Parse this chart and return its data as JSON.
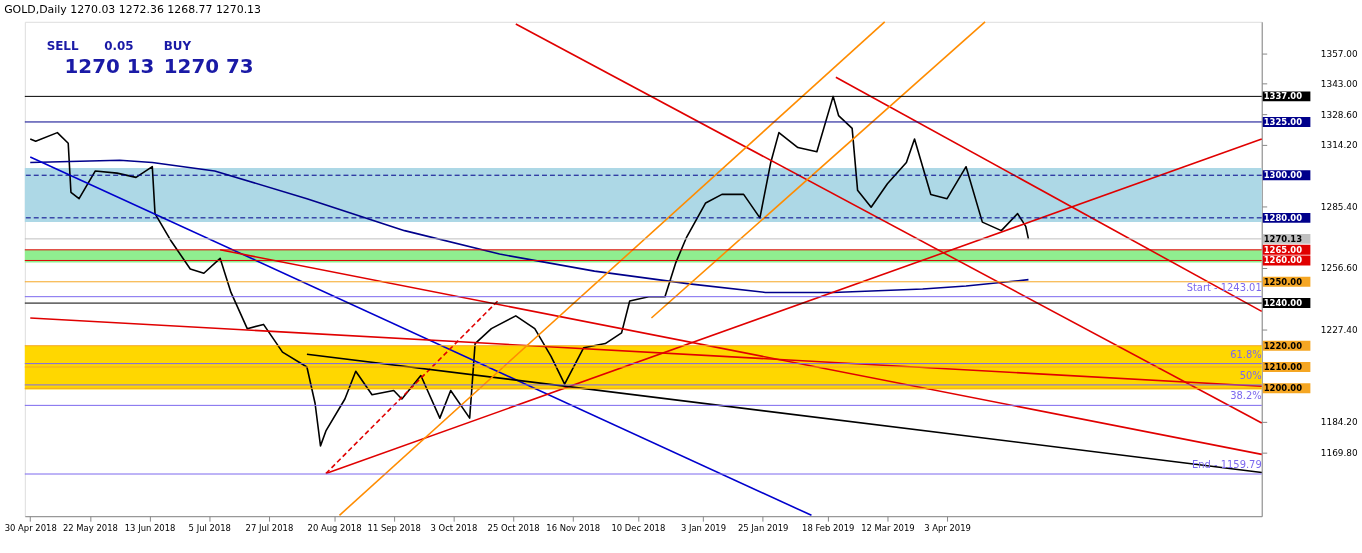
{
  "chart_data": {
    "type": "line",
    "title": "GOLD,Daily  1270.03 1272.36 1268.77 1270.13",
    "annotations": [
      "SELL",
      "0.05",
      "BUY",
      "1270 13",
      "1270 73",
      {
        "text": "Start - 1243.01",
        "x": "2019-07-28",
        "y": 1243.01
      },
      {
        "text": "61.8%",
        "x": "2019-07-28",
        "y": 1211.6
      },
      {
        "text": "50%",
        "x": "2019-07-28",
        "y": 1201.6
      },
      {
        "text": "38.2%",
        "x": "2019-07-28",
        "y": 1192
      },
      {
        "text": "End - 1159.79",
        "x": "2019-07-28",
        "y": 1159.79
      }
    ],
    "series": [
      {
        "color": "#000000",
        "x": [
          "2018-04-30",
          "2018-05-02",
          "2018-05-10",
          "2018-05-14",
          "2018-05-15",
          "2018-05-18",
          "2018-05-24",
          "2018-06-01",
          "2018-06-08",
          "2018-06-14",
          "2018-06-15",
          "2018-06-21",
          "2018-06-28",
          "2018-07-03",
          "2018-07-09",
          "2018-07-13",
          "2018-07-19",
          "2018-07-25",
          "2018-08-01",
          "2018-08-10",
          "2018-08-13",
          "2018-08-15",
          "2018-08-17",
          "2018-08-24",
          "2018-08-28",
          "2018-09-03",
          "2018-09-11",
          "2018-09-14",
          "2018-09-21",
          "2018-09-28",
          "2018-10-02",
          "2018-10-09",
          "2018-10-11",
          "2018-10-17",
          "2018-10-26",
          "2018-11-02",
          "2018-11-08",
          "2018-11-13",
          "2018-11-20",
          "2018-11-28",
          "2018-12-04",
          "2018-12-07",
          "2018-12-14",
          "2018-12-20",
          "2018-12-24",
          "2018-12-28",
          "2019-01-04",
          "2019-01-10",
          "2019-01-18",
          "2019-01-24",
          "2019-01-28",
          "2019-01-31",
          "2019-02-07",
          "2019-02-14",
          "2019-02-20",
          "2019-02-22",
          "2019-02-27",
          "2019-03-01",
          "2019-03-06",
          "2019-03-12",
          "2019-03-19",
          "2019-03-22",
          "2019-03-28",
          "2019-04-03",
          "2019-04-10",
          "2019-04-16",
          "2019-04-23",
          "2019-04-29",
          "2019-05-02",
          "2019-05-03"
        ],
        "values": [
          1317,
          1316,
          1320,
          1315,
          1292,
          1289,
          1302,
          1301,
          1299,
          1304,
          1282,
          1269,
          1256,
          1254,
          1261,
          1245,
          1228,
          1230,
          1217,
          1210,
          1193,
          1173,
          1180,
          1195,
          1208,
          1197,
          1199,
          1195,
          1206,
          1186,
          1199,
          1186,
          1221,
          1228,
          1234,
          1228,
          1215,
          1202,
          1219,
          1221,
          1226,
          1241,
          1243,
          1243,
          1259,
          1271,
          1287,
          1291,
          1291,
          1280,
          1306,
          1320,
          1313,
          1311,
          1337,
          1328,
          1322,
          1293,
          1285,
          1296,
          1306,
          1317,
          1291,
          1289,
          1304,
          1278,
          1274,
          1282,
          1276,
          1270
        ]
      },
      {
        "color": "#00008b",
        "x": [
          "2018-04-30",
          "2018-06-02",
          "2018-06-14",
          "2018-07-07",
          "2018-08-10",
          "2018-09-15",
          "2018-10-20",
          "2018-11-24",
          "2018-12-29",
          "2019-01-26",
          "2019-02-20",
          "2019-03-25",
          "2019-04-10",
          "2019-05-03"
        ],
        "values": [
          1306,
          1307,
          1306,
          1302,
          1289,
          1274,
          1263,
          1255,
          1249,
          1245,
          1245,
          1246.6,
          1248,
          1251
        ]
      },
      {
        "color": "#0000cd",
        "x": [
          "2018-04-30",
          "2019-02-12"
        ],
        "values": [
          1308.6,
          1140.4
        ]
      },
      {
        "color": "#e00000",
        "x": [
          "2018-10-26",
          "2019-07-28"
        ],
        "values": [
          1371,
          1183.7
        ]
      },
      {
        "color": "#e00000",
        "x": [
          "2019-02-21",
          "2019-07-28"
        ],
        "values": [
          1346,
          1236.1
        ]
      },
      {
        "color": "#e00000",
        "x": [
          "2018-08-17",
          "2019-07-28"
        ],
        "values": [
          1160,
          1317
        ]
      },
      {
        "color": "#e00000",
        "x": [
          "2018-07-09",
          "2019-07-28"
        ],
        "values": [
          1265,
          1169
        ]
      },
      {
        "color": "#e00000",
        "x": [
          "2018-04-30",
          "2019-07-28"
        ],
        "values": [
          1233,
          1201
        ]
      },
      {
        "color": "#e00000",
        "line_style": "dashed",
        "x": [
          "2018-08-17",
          "2018-10-20"
        ],
        "values": [
          1160,
          1241.8
        ]
      },
      {
        "color": "#000000",
        "x": [
          "2018-08-10",
          "2019-07-28"
        ],
        "values": [
          1216,
          1160.5
        ]
      },
      {
        "color": "#ff8c00",
        "x": [
          "2018-08-22",
          "2019-03-11"
        ],
        "values": [
          1140.4,
          1372
        ]
      },
      {
        "color": "#ff8c00",
        "x": [
          "2018-12-15",
          "2019-04-17"
        ],
        "values": [
          1233,
          1372
        ]
      }
    ],
    "xlim": [
      "2018-04-28",
      "2019-07-28"
    ],
    "xticks": [
      {
        "value": "2018-04-30",
        "label": "30 Apr 2018"
      },
      {
        "value": "2018-05-22",
        "label": "22 May 2018"
      },
      {
        "value": "2018-06-13",
        "label": "13 Jun 2018"
      },
      {
        "value": "2018-07-05",
        "label": "5 Jul 2018"
      },
      {
        "value": "2018-07-27",
        "label": "27 Jul 2018"
      },
      {
        "value": "2018-08-20",
        "label": "20 Aug 2018"
      },
      {
        "value": "2018-09-11",
        "label": "11 Sep 2018"
      },
      {
        "value": "2018-10-03",
        "label": "3 Oct 2018"
      },
      {
        "value": "2018-10-25",
        "label": "25 Oct 2018"
      },
      {
        "value": "2018-11-16",
        "label": "16 Nov 2018"
      },
      {
        "value": "2018-12-10",
        "label": "10 Dec 2018"
      },
      {
        "value": "2019-01-03",
        "label": "3 Jan 2019"
      },
      {
        "value": "2019-01-25",
        "label": "25 Jan 2019"
      },
      {
        "value": "2019-02-18",
        "label": "18 Feb 2019"
      },
      {
        "value": "2019-03-12",
        "label": "12 Mar 2019"
      },
      {
        "value": "2019-04-03",
        "label": "3 Apr 2019"
      }
    ],
    "ylim": [
      1140,
      1372
    ],
    "yticks": [
      {
        "value": 1357,
        "label": "1357.00"
      },
      {
        "value": 1343,
        "label": "1343.00"
      },
      {
        "value": 1328.6,
        "label": "1328.60"
      },
      {
        "value": 1314.2,
        "label": "1314.20"
      },
      {
        "value": 1285.4,
        "label": "1285.40"
      },
      {
        "value": 1256.6,
        "label": "1256.60"
      },
      {
        "value": 1227.4,
        "label": "1227.40"
      },
      {
        "value": 1184.2,
        "label": "1184.20"
      },
      {
        "value": 1169.8,
        "label": "1169.80"
      }
    ],
    "ref_lines": [
      {
        "axis": "y",
        "value": 1337,
        "label": "1337.00",
        "color": "#000000"
      },
      {
        "axis": "y",
        "value": 1325,
        "label": "1325.00",
        "color": "#00008b"
      },
      {
        "axis": "y",
        "value": 1300,
        "label": "1300.00",
        "color": "#00008b",
        "line_style": "dashed"
      },
      {
        "axis": "y",
        "value": 1280,
        "label": "1280.00",
        "color": "#00008b",
        "line_style": "dashed"
      },
      {
        "axis": "y",
        "value": 1270.13,
        "label": "1270.13",
        "color": "#c0c0c0"
      },
      {
        "axis": "y",
        "value": 1265,
        "label": "1265.00",
        "color": "#e00000"
      },
      {
        "axis": "y",
        "value": 1260,
        "label": "1260.00",
        "color": "#e00000"
      },
      {
        "axis": "y",
        "value": 1250,
        "label": "1250.00",
        "color": "#f5a623"
      },
      {
        "axis": "y",
        "value": 1240,
        "label": "1240.00",
        "color": "#000000"
      },
      {
        "axis": "y",
        "value": 1220,
        "label": "1220.00",
        "color": "#f5a623"
      },
      {
        "axis": "y",
        "value": 1210,
        "label": "1210.00",
        "color": "#f5a623"
      },
      {
        "axis": "y",
        "value": 1200,
        "label": "1200.00",
        "color": "#f5a623"
      },
      {
        "axis": "y",
        "value": 1243.01,
        "color": "#7b68ee"
      },
      {
        "axis": "y",
        "value": 1211.6,
        "color": "#7b68ee"
      },
      {
        "axis": "y",
        "value": 1201.6,
        "color": "#7b68ee"
      },
      {
        "axis": "y",
        "value": 1192,
        "color": "#7b68ee"
      },
      {
        "axis": "y",
        "value": 1159.79,
        "color": "#7b68ee"
      }
    ],
    "bands": [
      {
        "axis": "y",
        "from": 1278,
        "to": 1303.4,
        "color": "#add8e6"
      },
      {
        "axis": "y",
        "from": 1199.4,
        "to": 1220,
        "color": "#ffd700"
      },
      {
        "axis": "y",
        "from": 1259,
        "to": 1265,
        "color": "#90ee90"
      }
    ],
    "grid": false,
    "marker": "none",
    "line_style": "solid"
  }
}
